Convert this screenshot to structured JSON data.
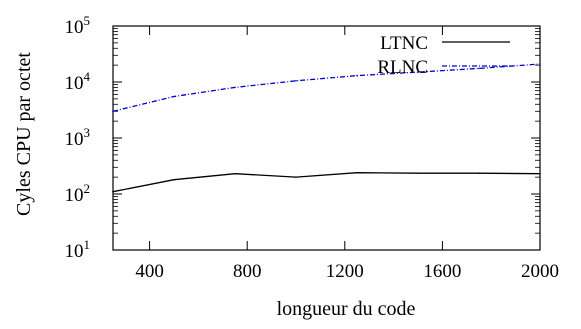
{
  "chart_data": {
    "type": "line",
    "title": "",
    "xlabel": "longueur du code",
    "ylabel": "Cyles CPU par octet",
    "xlim": [
      250,
      2000
    ],
    "ylim": [
      10,
      100000
    ],
    "yscale": "log",
    "grid": false,
    "legend_position": "top-right",
    "x_ticks": [
      {
        "value": 400,
        "label": "400"
      },
      {
        "value": 800,
        "label": "800"
      },
      {
        "value": 1200,
        "label": "1200"
      },
      {
        "value": 1600,
        "label": "1600"
      },
      {
        "value": 2000,
        "label": "2000"
      }
    ],
    "y_ticks": [
      {
        "value": 10,
        "base": "10",
        "exp": "1"
      },
      {
        "value": 100,
        "base": "10",
        "exp": "2"
      },
      {
        "value": 1000,
        "base": "10",
        "exp": "3"
      },
      {
        "value": 10000,
        "base": "10",
        "exp": "4"
      },
      {
        "value": 100000,
        "base": "10",
        "exp": "5"
      }
    ],
    "series": [
      {
        "name": "LTNC",
        "color": "#000000",
        "style": "solid",
        "x": [
          250,
          500,
          750,
          1000,
          1250,
          1500,
          1750,
          2000
        ],
        "y": [
          110,
          180,
          230,
          200,
          240,
          235,
          235,
          230
        ]
      },
      {
        "name": "RLNC",
        "color": "#0000cc",
        "style": "dash-dot",
        "x": [
          250,
          500,
          750,
          1000,
          1250,
          1500,
          1750,
          2000
        ],
        "y": [
          3000,
          5500,
          8000,
          10500,
          13000,
          15000,
          17500,
          21000
        ]
      }
    ]
  }
}
